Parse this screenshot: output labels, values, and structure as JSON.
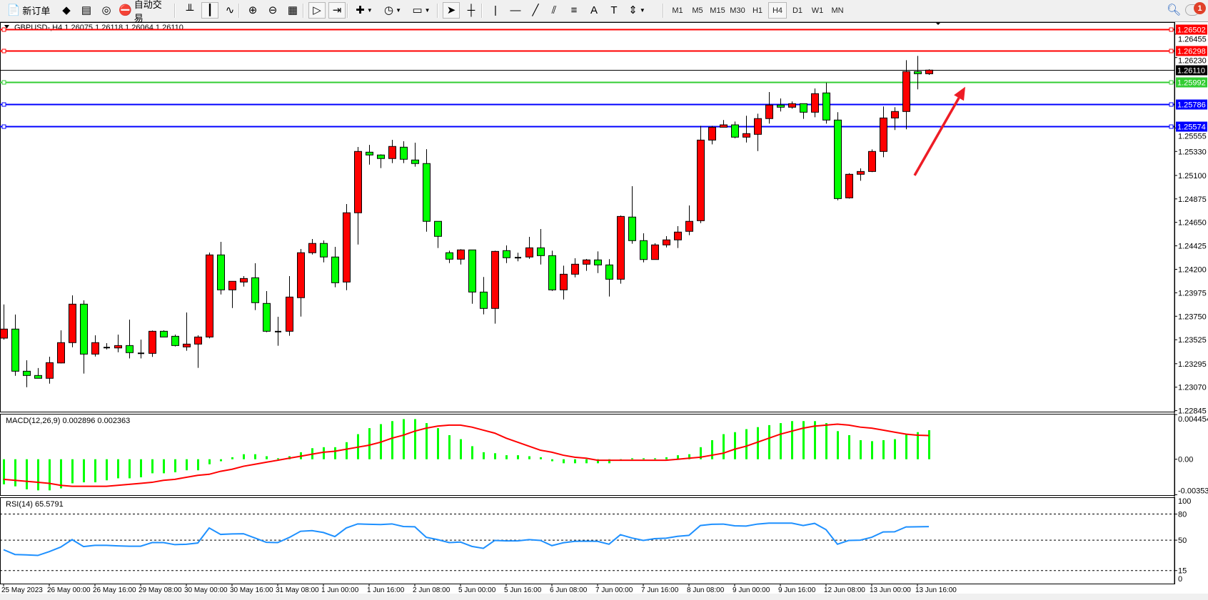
{
  "toolbar": {
    "items": [
      {
        "icon": "new-order-icon",
        "glyph": "📄",
        "label": "新订单"
      },
      {
        "icon": "market-watch-icon",
        "glyph": "◆"
      },
      {
        "icon": "navigator-icon",
        "glyph": "▤"
      },
      {
        "icon": "signals-icon",
        "glyph": "◎"
      },
      {
        "icon": "auto-trading-icon",
        "glyph": "⛔",
        "label": "自动交易"
      },
      {
        "icon": "bar-chart-icon",
        "glyph": "╨"
      },
      {
        "icon": "candlestick-chart-icon",
        "glyph": "┃",
        "active": true
      },
      {
        "icon": "line-chart-icon",
        "glyph": "∿"
      },
      {
        "icon": "zoom-in-icon",
        "glyph": "⊕"
      },
      {
        "icon": "zoom-out-icon",
        "glyph": "⊖"
      },
      {
        "icon": "tile-windows-icon",
        "glyph": "▦"
      },
      {
        "icon": "auto-scroll-icon",
        "glyph": "▷",
        "active": true
      },
      {
        "icon": "chart-shift-icon",
        "glyph": "⇥",
        "active": true
      },
      {
        "icon": "new-chart-icon",
        "glyph": "✚",
        "dropdown": true
      },
      {
        "icon": "periods-clock-icon",
        "glyph": "◷",
        "dropdown": true
      },
      {
        "icon": "templates-icon",
        "glyph": "▭",
        "dropdown": true
      },
      {
        "icon": "cursor-icon",
        "glyph": "➤",
        "active": true
      },
      {
        "icon": "crosshair-icon",
        "glyph": "┼"
      },
      {
        "icon": "vertical-line-icon",
        "glyph": "|"
      },
      {
        "icon": "horizontal-line-icon",
        "glyph": "—"
      },
      {
        "icon": "trendline-icon",
        "glyph": "╱"
      },
      {
        "icon": "equidistant-channel-icon",
        "glyph": "⫽"
      },
      {
        "icon": "fibonacci-icon",
        "glyph": "≡"
      },
      {
        "icon": "text-icon",
        "glyph": "A"
      },
      {
        "icon": "text-label-icon",
        "glyph": "T"
      },
      {
        "icon": "arrows-icon",
        "glyph": "⇕",
        "dropdown": true
      }
    ],
    "timeframes": [
      "M1",
      "M5",
      "M15",
      "M30",
      "H1",
      "H4",
      "D1",
      "W1",
      "MN"
    ],
    "active_timeframe": "H4",
    "search_icon": "search-icon",
    "chat_icon": "chat-bubble-icon",
    "notification_count": "1"
  },
  "chart_data": {
    "type": "candlestick",
    "title": "GBPUSD-,H4  1.26075 1.26118 1.26064 1.26110",
    "colors": {
      "bull": "#ff0000",
      "bear": "#00ff00",
      "outline": "#000000"
    },
    "ohlc": [
      [
        1.2354,
        1.23863,
        1.23526,
        1.23627
      ],
      [
        1.23627,
        1.23766,
        1.23179,
        1.23223
      ],
      [
        1.23223,
        1.23328,
        1.2307,
        1.23182
      ],
      [
        1.23182,
        1.23253,
        1.23155,
        1.23155
      ],
      [
        1.23155,
        1.23362,
        1.23104,
        1.23305
      ],
      [
        1.23302,
        1.23615,
        1.23298,
        1.23497
      ],
      [
        1.23497,
        1.2395,
        1.23453,
        1.23866
      ],
      [
        1.23866,
        1.23902,
        1.232,
        1.23387
      ],
      [
        1.23387,
        1.23567,
        1.23364,
        1.23497
      ],
      [
        1.23453,
        1.23492,
        1.23432,
        1.23453
      ],
      [
        1.23446,
        1.23574,
        1.23405,
        1.23469
      ],
      [
        1.23469,
        1.23718,
        1.23346,
        1.23401
      ],
      [
        1.23398,
        1.23526,
        1.23346,
        1.23398
      ],
      [
        1.23394,
        1.23613,
        1.2336,
        1.23606
      ],
      [
        1.23606,
        1.23615,
        1.23551,
        1.23551
      ],
      [
        1.23558,
        1.23574,
        1.2346,
        1.23469
      ],
      [
        1.23456,
        1.23786,
        1.23419,
        1.23483
      ],
      [
        1.23483,
        1.23567,
        1.23255,
        1.23551
      ],
      [
        1.23551,
        1.24361,
        1.23538,
        1.24338
      ],
      [
        1.24338,
        1.24463,
        1.23959,
        1.24003
      ],
      [
        1.24003,
        1.24085,
        1.23829,
        1.24085
      ],
      [
        1.24078,
        1.24135,
        1.24034,
        1.24112
      ],
      [
        1.24119,
        1.24258,
        1.23809,
        1.2388
      ],
      [
        1.23873,
        1.23991,
        1.23597,
        1.23606
      ],
      [
        1.23606,
        1.23745,
        1.23467,
        1.23606
      ],
      [
        1.23606,
        1.24135,
        1.23563,
        1.23934
      ],
      [
        1.23928,
        1.24395,
        1.23747,
        1.24359
      ],
      [
        1.24359,
        1.24491,
        1.24342,
        1.24448
      ],
      [
        1.24448,
        1.24477,
        1.24267,
        1.24318
      ],
      [
        1.24318,
        1.24415,
        1.24028,
        1.24071
      ],
      [
        1.24078,
        1.24826,
        1.24,
        1.24742
      ],
      [
        1.24742,
        1.25373,
        1.24438,
        1.2533
      ],
      [
        1.25323,
        1.25393,
        1.25204,
        1.25296
      ],
      [
        1.25296,
        1.25302,
        1.2517,
        1.25262
      ],
      [
        1.25262,
        1.25441,
        1.25218,
        1.25378
      ],
      [
        1.25371,
        1.25428,
        1.25218,
        1.25255
      ],
      [
        1.25248,
        1.25414,
        1.25184,
        1.25214
      ],
      [
        1.25214,
        1.25352,
        1.24561,
        1.2466
      ],
      [
        1.2466,
        1.2466,
        1.24404,
        1.24516
      ],
      [
        1.24359,
        1.24379,
        1.2426,
        1.24297
      ],
      [
        1.24297,
        1.24393,
        1.24246,
        1.24386
      ],
      [
        1.24386,
        1.24386,
        1.2387,
        1.23982
      ],
      [
        1.23982,
        1.24126,
        1.23768,
        1.23825
      ],
      [
        1.23825,
        1.24379,
        1.23679,
        1.24372
      ],
      [
        1.24379,
        1.24429,
        1.2426,
        1.24311
      ],
      [
        1.24315,
        1.24359,
        1.24277,
        1.24315
      ],
      [
        1.24318,
        1.24511,
        1.24301,
        1.24406
      ],
      [
        1.24406,
        1.24586,
        1.24246,
        1.24331
      ],
      [
        1.24331,
        1.24379,
        1.23993,
        1.24003
      ],
      [
        1.24003,
        1.24235,
        1.23911,
        1.24153
      ],
      [
        1.24153,
        1.24306,
        1.24123,
        1.24249
      ],
      [
        1.24249,
        1.24299,
        1.24185,
        1.2429
      ],
      [
        1.2429,
        1.24372,
        1.24164,
        1.24242
      ],
      [
        1.24242,
        1.24297,
        1.23939,
        1.24105
      ],
      [
        1.24105,
        1.24716,
        1.24062,
        1.24707
      ],
      [
        1.24701,
        1.24997,
        1.24445,
        1.24475
      ],
      [
        1.24475,
        1.24545,
        1.24267,
        1.24294
      ],
      [
        1.24294,
        1.2445,
        1.24294,
        1.24434
      ],
      [
        1.24434,
        1.24518,
        1.24409,
        1.24482
      ],
      [
        1.24482,
        1.24614,
        1.24404,
        1.24557
      ],
      [
        1.24564,
        1.24812,
        1.24527,
        1.2466
      ],
      [
        1.24666,
        1.25576,
        1.24643,
        1.25439
      ],
      [
        1.25439,
        1.25576,
        1.25398,
        1.25562
      ],
      [
        1.25562,
        1.25631,
        1.25562,
        1.25585
      ],
      [
        1.25585,
        1.25617,
        1.25457,
        1.25467
      ],
      [
        1.25467,
        1.25672,
        1.25416,
        1.25501
      ],
      [
        1.25494,
        1.25692,
        1.25334,
        1.25645
      ],
      [
        1.25645,
        1.259,
        1.25597,
        1.25775
      ],
      [
        1.25775,
        1.25838,
        1.25713,
        1.25754
      ],
      [
        1.25754,
        1.25809,
        1.2574,
        1.25788
      ],
      [
        1.25788,
        1.25788,
        1.25642,
        1.25706
      ],
      [
        1.25706,
        1.25934,
        1.25658,
        1.25884
      ],
      [
        1.25891,
        1.25989,
        1.25597,
        1.25631
      ],
      [
        1.25631,
        1.25706,
        1.24862,
        1.24878
      ],
      [
        1.24885,
        1.25122,
        1.24878,
        1.25111
      ],
      [
        1.25111,
        1.25168,
        1.25049,
        1.25138
      ],
      [
        1.25138,
        1.2535,
        1.25132,
        1.2533
      ],
      [
        1.2533,
        1.25761,
        1.25275,
        1.25651
      ],
      [
        1.25651,
        1.25754,
        1.25535,
        1.25713
      ],
      [
        1.25713,
        1.26205,
        1.25542,
        1.26096
      ],
      [
        1.26096,
        1.26246,
        1.25925,
        1.26075
      ],
      [
        1.26075,
        1.26118,
        1.26064,
        1.2611
      ]
    ],
    "ylim": [
      1.22835,
      1.26556
    ],
    "y_ticks": [
      "1.26455",
      "1.26230",
      "1.25555",
      "1.25330",
      "1.25100",
      "1.24875",
      "1.24650",
      "1.24425",
      "1.24200",
      "1.23975",
      "1.23750",
      "1.23525",
      "1.23295",
      "1.23070",
      "1.22845"
    ],
    "x_ticks": [
      "25 May 2023",
      "26 May 00:00",
      "26 May 16:00",
      "29 May 08:00",
      "30 May 00:00",
      "30 May 16:00",
      "31 May 08:00",
      "1 Jun 00:00",
      "1 Jun 16:00",
      "2 Jun 08:00",
      "5 Jun 00:00",
      "5 Jun 16:00",
      "6 Jun 08:00",
      "7 Jun 00:00",
      "7 Jun 16:00",
      "8 Jun 08:00",
      "9 Jun 00:00",
      "9 Jun 16:00",
      "12 Jun 08:00",
      "13 Jun 00:00",
      "13 Jun 16:00"
    ],
    "levels": [
      {
        "price": "1.26502",
        "color": "#ff0000"
      },
      {
        "price": "1.26298",
        "color": "#ff0000"
      },
      {
        "price": "1.26110",
        "color": "#000000",
        "bid": true
      },
      {
        "price": "1.25992",
        "color": "#32cd32"
      },
      {
        "price": "1.25786",
        "color": "#0000ff"
      },
      {
        "price": "1.25574",
        "color": "#0000ff"
      }
    ],
    "annotation": {
      "type": "arrow",
      "color": "#ee1c25",
      "from": {
        "candle": 80,
        "price": 1.251
      },
      "to": {
        "candle": 84,
        "price": 1.2595
      }
    },
    "macd": {
      "title": "MACD(12,26,9) 0.002896 0.002363",
      "ylim": [
        -0.003533,
        0.004454
      ],
      "y_ticks": [
        "0.004454",
        "0.00",
        "-0.003533"
      ],
      "hist_color": "#00ff00",
      "signal_color": "#ff0000",
      "main": [
        -0.0025,
        -0.0027,
        -0.003,
        -0.0031,
        -0.0031,
        -0.0029,
        -0.0024,
        -0.0023,
        -0.0023,
        -0.0021,
        -0.0019,
        -0.0019,
        -0.0018,
        -0.0014,
        -0.0014,
        -0.0013,
        -0.0011,
        -0.0011,
        -0.0005,
        -0.0002,
        0.0002,
        0.0005,
        0.0005,
        0.0003,
        0.0001,
        0.0003,
        0.0007,
        0.0011,
        0.0012,
        0.0012,
        0.0017,
        0.0025,
        0.0031,
        0.0035,
        0.0038,
        0.004,
        0.004,
        0.0036,
        0.0031,
        0.0024,
        0.002,
        0.0013,
        0.0007,
        0.0006,
        0.0004,
        0.0004,
        0.0003,
        0.0002,
        -0.0002,
        -0.0004,
        -0.0004,
        -0.0004,
        -0.0004,
        -0.0004,
        -0.0001,
        0.0001,
        0.0001,
        0.0001,
        0.0002,
        0.0004,
        0.0005,
        0.0012,
        0.0019,
        0.0025,
        0.0027,
        0.003,
        0.0032,
        0.0034,
        0.0036,
        0.0038,
        0.0038,
        0.0038,
        0.0036,
        0.0028,
        0.0024,
        0.0019,
        0.0018,
        0.0019,
        0.002,
        0.0025,
        0.0027,
        0.002896
      ],
      "signal": [
        -0.002,
        -0.0021,
        -0.0022,
        -0.0023,
        -0.0024,
        -0.0026,
        -0.0027,
        -0.0027,
        -0.0027,
        -0.0027,
        -0.0026,
        -0.0025,
        -0.0024,
        -0.0023,
        -0.0021,
        -0.002,
        -0.0018,
        -0.0016,
        -0.0015,
        -0.0012,
        -0.001,
        -0.0007,
        -0.0005,
        -0.0003,
        -0.0001,
        0.0001,
        0.0003,
        0.0005,
        0.0007,
        0.0008,
        0.001,
        0.0012,
        0.0014,
        0.0017,
        0.0021,
        0.0024,
        0.0028,
        0.0031,
        0.0033,
        0.0034,
        0.0034,
        0.0032,
        0.0029,
        0.0026,
        0.0021,
        0.0017,
        0.0013,
        0.0009,
        0.0007,
        0.0004,
        0.0002,
        0.0001,
        -0.0001,
        -0.0001,
        -0.0001,
        -0.0001,
        -0.0001,
        -0.0001,
        -0.0001,
        0.0,
        0.0001,
        0.0002,
        0.0004,
        0.0006,
        0.001,
        0.0013,
        0.0017,
        0.0021,
        0.0025,
        0.0028,
        0.0031,
        0.0033,
        0.0034,
        0.0035,
        0.0034,
        0.0032,
        0.0031,
        0.0029,
        0.0027,
        0.0025,
        0.0024,
        0.002363
      ]
    },
    "rsi": {
      "title": "RSI(14) 65.5791",
      "ylim": [
        0,
        100
      ],
      "levels": [
        80,
        50,
        15
      ],
      "y_ticks": [
        "100",
        "80",
        "50",
        "15",
        "0"
      ],
      "color": "#1e90ff",
      "values": [
        39,
        33.5,
        33,
        32.4,
        36.8,
        42,
        50.6,
        42.6,
        44,
        44,
        43.4,
        43,
        43,
        47.2,
        47.2,
        44.8,
        45.3,
        46.7,
        64,
        56.6,
        57.2,
        57.4,
        52.5,
        47.5,
        47.2,
        53,
        60.2,
        61,
        58.8,
        54.1,
        64,
        68.7,
        68.2,
        67.9,
        68.7,
        65.7,
        65.4,
        53.3,
        50.6,
        47.2,
        47.8,
        42.8,
        40.6,
        49.7,
        49.2,
        49.2,
        50.6,
        49.7,
        43.7,
        47,
        48.6,
        48.9,
        48.6,
        45.3,
        56.3,
        52.5,
        49.7,
        51.7,
        52.2,
        54.4,
        55.5,
        66.8,
        68.2,
        68.5,
        66.5,
        66.2,
        68.5,
        69.6,
        69.6,
        69.6,
        66.8,
        69.3,
        62.1,
        45.3,
        49.7,
        50,
        53.3,
        59.4,
        59.6,
        65.2,
        65.4,
        65.5791
      ]
    }
  }
}
